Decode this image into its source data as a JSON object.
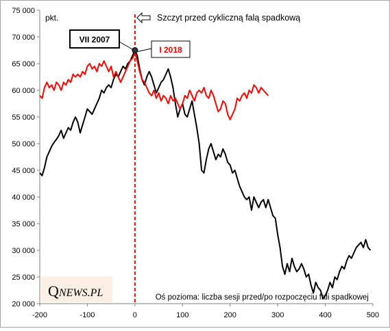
{
  "chart_data": {
    "type": "line",
    "unit_label": "pkt.",
    "xlabel": "Oś pozioma: liczba sesji przed/po rozpoczęciu fali spadkowej",
    "ylabel": "",
    "xlim": [
      -200,
      500
    ],
    "ylim": [
      20000,
      75000
    ],
    "x_ticks": [
      "-200",
      "-100",
      "0",
      "100",
      "200",
      "300",
      "400",
      "500"
    ],
    "y_ticks": [
      "20 000",
      "25 000",
      "30 000",
      "35 000",
      "40 000",
      "45 000",
      "50 000",
      "55 000",
      "60 000",
      "65 000",
      "70 000",
      "75 000"
    ],
    "grid": false,
    "vline_x": 0,
    "peak_annotation": "Szczyt przed cykliczną falą spadkową",
    "series": [
      {
        "name": "VII 2007",
        "color": "#000000",
        "points": [
          [
            -200,
            44500
          ],
          [
            -195,
            44000
          ],
          [
            -190,
            45500
          ],
          [
            -185,
            47500
          ],
          [
            -180,
            48500
          ],
          [
            -175,
            49500
          ],
          [
            -170,
            50200
          ],
          [
            -165,
            50800
          ],
          [
            -160,
            51500
          ],
          [
            -155,
            52500
          ],
          [
            -150,
            51000
          ],
          [
            -145,
            52000
          ],
          [
            -140,
            53000
          ],
          [
            -135,
            52500
          ],
          [
            -130,
            54000
          ],
          [
            -125,
            55000
          ],
          [
            -120,
            54000
          ],
          [
            -115,
            52000
          ],
          [
            -110,
            53500
          ],
          [
            -105,
            55000
          ],
          [
            -100,
            56500
          ],
          [
            -95,
            56000
          ],
          [
            -90,
            55500
          ],
          [
            -85,
            56500
          ],
          [
            -80,
            57500
          ],
          [
            -75,
            58500
          ],
          [
            -70,
            60000
          ],
          [
            -65,
            59500
          ],
          [
            -60,
            60500
          ],
          [
            -55,
            61000
          ],
          [
            -50,
            60500
          ],
          [
            -45,
            62000
          ],
          [
            -40,
            63000
          ],
          [
            -35,
            62500
          ],
          [
            -30,
            63500
          ],
          [
            -25,
            64500
          ],
          [
            -20,
            64000
          ],
          [
            -15,
            65000
          ],
          [
            -10,
            65500
          ],
          [
            -5,
            66500
          ],
          [
            0,
            67500
          ],
          [
            5,
            66500
          ],
          [
            10,
            64000
          ],
          [
            15,
            62000
          ],
          [
            20,
            61000
          ],
          [
            25,
            62500
          ],
          [
            30,
            63500
          ],
          [
            35,
            62500
          ],
          [
            40,
            61000
          ],
          [
            45,
            59500
          ],
          [
            50,
            60500
          ],
          [
            55,
            61500
          ],
          [
            60,
            62000
          ],
          [
            65,
            63000
          ],
          [
            70,
            64000
          ],
          [
            75,
            62500
          ],
          [
            80,
            60500
          ],
          [
            85,
            57500
          ],
          [
            90,
            55000
          ],
          [
            95,
            56500
          ],
          [
            100,
            57500
          ],
          [
            105,
            55500
          ],
          [
            110,
            55000
          ],
          [
            115,
            56500
          ],
          [
            120,
            58000
          ],
          [
            125,
            55500
          ],
          [
            130,
            53000
          ],
          [
            135,
            50000
          ],
          [
            140,
            45000
          ],
          [
            145,
            44500
          ],
          [
            150,
            47000
          ],
          [
            155,
            49000
          ],
          [
            160,
            50000
          ],
          [
            165,
            48500
          ],
          [
            170,
            47000
          ],
          [
            175,
            48000
          ],
          [
            180,
            47500
          ],
          [
            185,
            49000
          ],
          [
            190,
            48000
          ],
          [
            195,
            46500
          ],
          [
            200,
            46000
          ],
          [
            205,
            44500
          ],
          [
            210,
            45000
          ],
          [
            215,
            43500
          ],
          [
            220,
            42000
          ],
          [
            225,
            41000
          ],
          [
            230,
            40000
          ],
          [
            235,
            39500
          ],
          [
            240,
            40000
          ],
          [
            245,
            37500
          ],
          [
            250,
            40000
          ],
          [
            255,
            39000
          ],
          [
            260,
            38000
          ],
          [
            265,
            39000
          ],
          [
            270,
            39500
          ],
          [
            275,
            38000
          ],
          [
            280,
            39500
          ],
          [
            285,
            38000
          ],
          [
            290,
            36500
          ],
          [
            295,
            36000
          ],
          [
            300,
            33000
          ],
          [
            305,
            30500
          ],
          [
            310,
            27000
          ],
          [
            315,
            25500
          ],
          [
            320,
            27500
          ],
          [
            325,
            26000
          ],
          [
            330,
            28500
          ],
          [
            335,
            27000
          ],
          [
            340,
            26000
          ],
          [
            345,
            26500
          ],
          [
            350,
            27500
          ],
          [
            355,
            26500
          ],
          [
            360,
            25000
          ],
          [
            365,
            25500
          ],
          [
            370,
            23500
          ],
          [
            375,
            22000
          ],
          [
            380,
            24000
          ],
          [
            385,
            23000
          ],
          [
            390,
            22500
          ],
          [
            395,
            21000
          ],
          [
            400,
            21500
          ],
          [
            405,
            22500
          ],
          [
            410,
            24000
          ],
          [
            415,
            23000
          ],
          [
            420,
            25000
          ],
          [
            425,
            24500
          ],
          [
            430,
            26000
          ],
          [
            435,
            27000
          ],
          [
            440,
            26500
          ],
          [
            445,
            28000
          ],
          [
            450,
            29000
          ],
          [
            455,
            28500
          ],
          [
            460,
            29500
          ],
          [
            465,
            30500
          ],
          [
            470,
            31000
          ],
          [
            475,
            31500
          ],
          [
            480,
            30500
          ],
          [
            485,
            32000
          ],
          [
            490,
            30500
          ],
          [
            495,
            30000
          ]
        ]
      },
      {
        "name": "I 2018",
        "color": "#ff0000",
        "points": [
          [
            -200,
            59000
          ],
          [
            -195,
            58500
          ],
          [
            -190,
            60500
          ],
          [
            -185,
            61500
          ],
          [
            -180,
            60500
          ],
          [
            -175,
            61000
          ],
          [
            -170,
            60000
          ],
          [
            -165,
            61500
          ],
          [
            -160,
            61000
          ],
          [
            -155,
            60000
          ],
          [
            -150,
            61500
          ],
          [
            -145,
            61000
          ],
          [
            -140,
            62000
          ],
          [
            -135,
            61500
          ],
          [
            -130,
            63000
          ],
          [
            -125,
            62500
          ],
          [
            -120,
            63000
          ],
          [
            -115,
            62500
          ],
          [
            -110,
            63500
          ],
          [
            -105,
            63000
          ],
          [
            -100,
            64500
          ],
          [
            -95,
            65000
          ],
          [
            -90,
            64000
          ],
          [
            -85,
            64500
          ],
          [
            -80,
            63500
          ],
          [
            -75,
            65000
          ],
          [
            -70,
            64500
          ],
          [
            -65,
            65500
          ],
          [
            -60,
            64500
          ],
          [
            -55,
            63500
          ],
          [
            -50,
            64500
          ],
          [
            -45,
            62500
          ],
          [
            -40,
            63500
          ],
          [
            -35,
            62500
          ],
          [
            -30,
            61500
          ],
          [
            -25,
            62500
          ],
          [
            -20,
            63500
          ],
          [
            -15,
            64500
          ],
          [
            -10,
            65500
          ],
          [
            -5,
            66000
          ],
          [
            0,
            67000
          ],
          [
            5,
            65500
          ],
          [
            10,
            63500
          ],
          [
            15,
            62000
          ],
          [
            20,
            61500
          ],
          [
            25,
            60500
          ],
          [
            30,
            59500
          ],
          [
            35,
            59000
          ],
          [
            40,
            60000
          ],
          [
            45,
            58500
          ],
          [
            50,
            59500
          ],
          [
            55,
            58000
          ],
          [
            60,
            59000
          ],
          [
            65,
            58500
          ],
          [
            70,
            57500
          ],
          [
            75,
            59000
          ],
          [
            80,
            58000
          ],
          [
            85,
            58500
          ],
          [
            90,
            57500
          ],
          [
            95,
            56500
          ],
          [
            100,
            57500
          ],
          [
            105,
            59000
          ],
          [
            110,
            58500
          ],
          [
            115,
            60000
          ],
          [
            120,
            59000
          ],
          [
            125,
            58000
          ],
          [
            130,
            59500
          ],
          [
            135,
            60000
          ],
          [
            140,
            59500
          ],
          [
            145,
            60500
          ],
          [
            150,
            59000
          ],
          [
            155,
            58500
          ],
          [
            160,
            60000
          ],
          [
            165,
            59000
          ],
          [
            170,
            57500
          ],
          [
            175,
            56000
          ],
          [
            180,
            56500
          ],
          [
            185,
            58000
          ],
          [
            190,
            57500
          ],
          [
            195,
            55500
          ],
          [
            200,
            54500
          ],
          [
            205,
            55500
          ],
          [
            210,
            56500
          ],
          [
            215,
            58500
          ],
          [
            220,
            58000
          ],
          [
            225,
            59000
          ],
          [
            230,
            59500
          ],
          [
            235,
            58500
          ],
          [
            240,
            60000
          ],
          [
            245,
            59500
          ],
          [
            250,
            61000
          ],
          [
            255,
            60500
          ],
          [
            260,
            59500
          ],
          [
            265,
            60500
          ],
          [
            270,
            60000
          ],
          [
            275,
            59500
          ],
          [
            280,
            59000
          ]
        ]
      }
    ]
  },
  "brand": {
    "q": "Q",
    "rest": "NEWS.PL"
  }
}
